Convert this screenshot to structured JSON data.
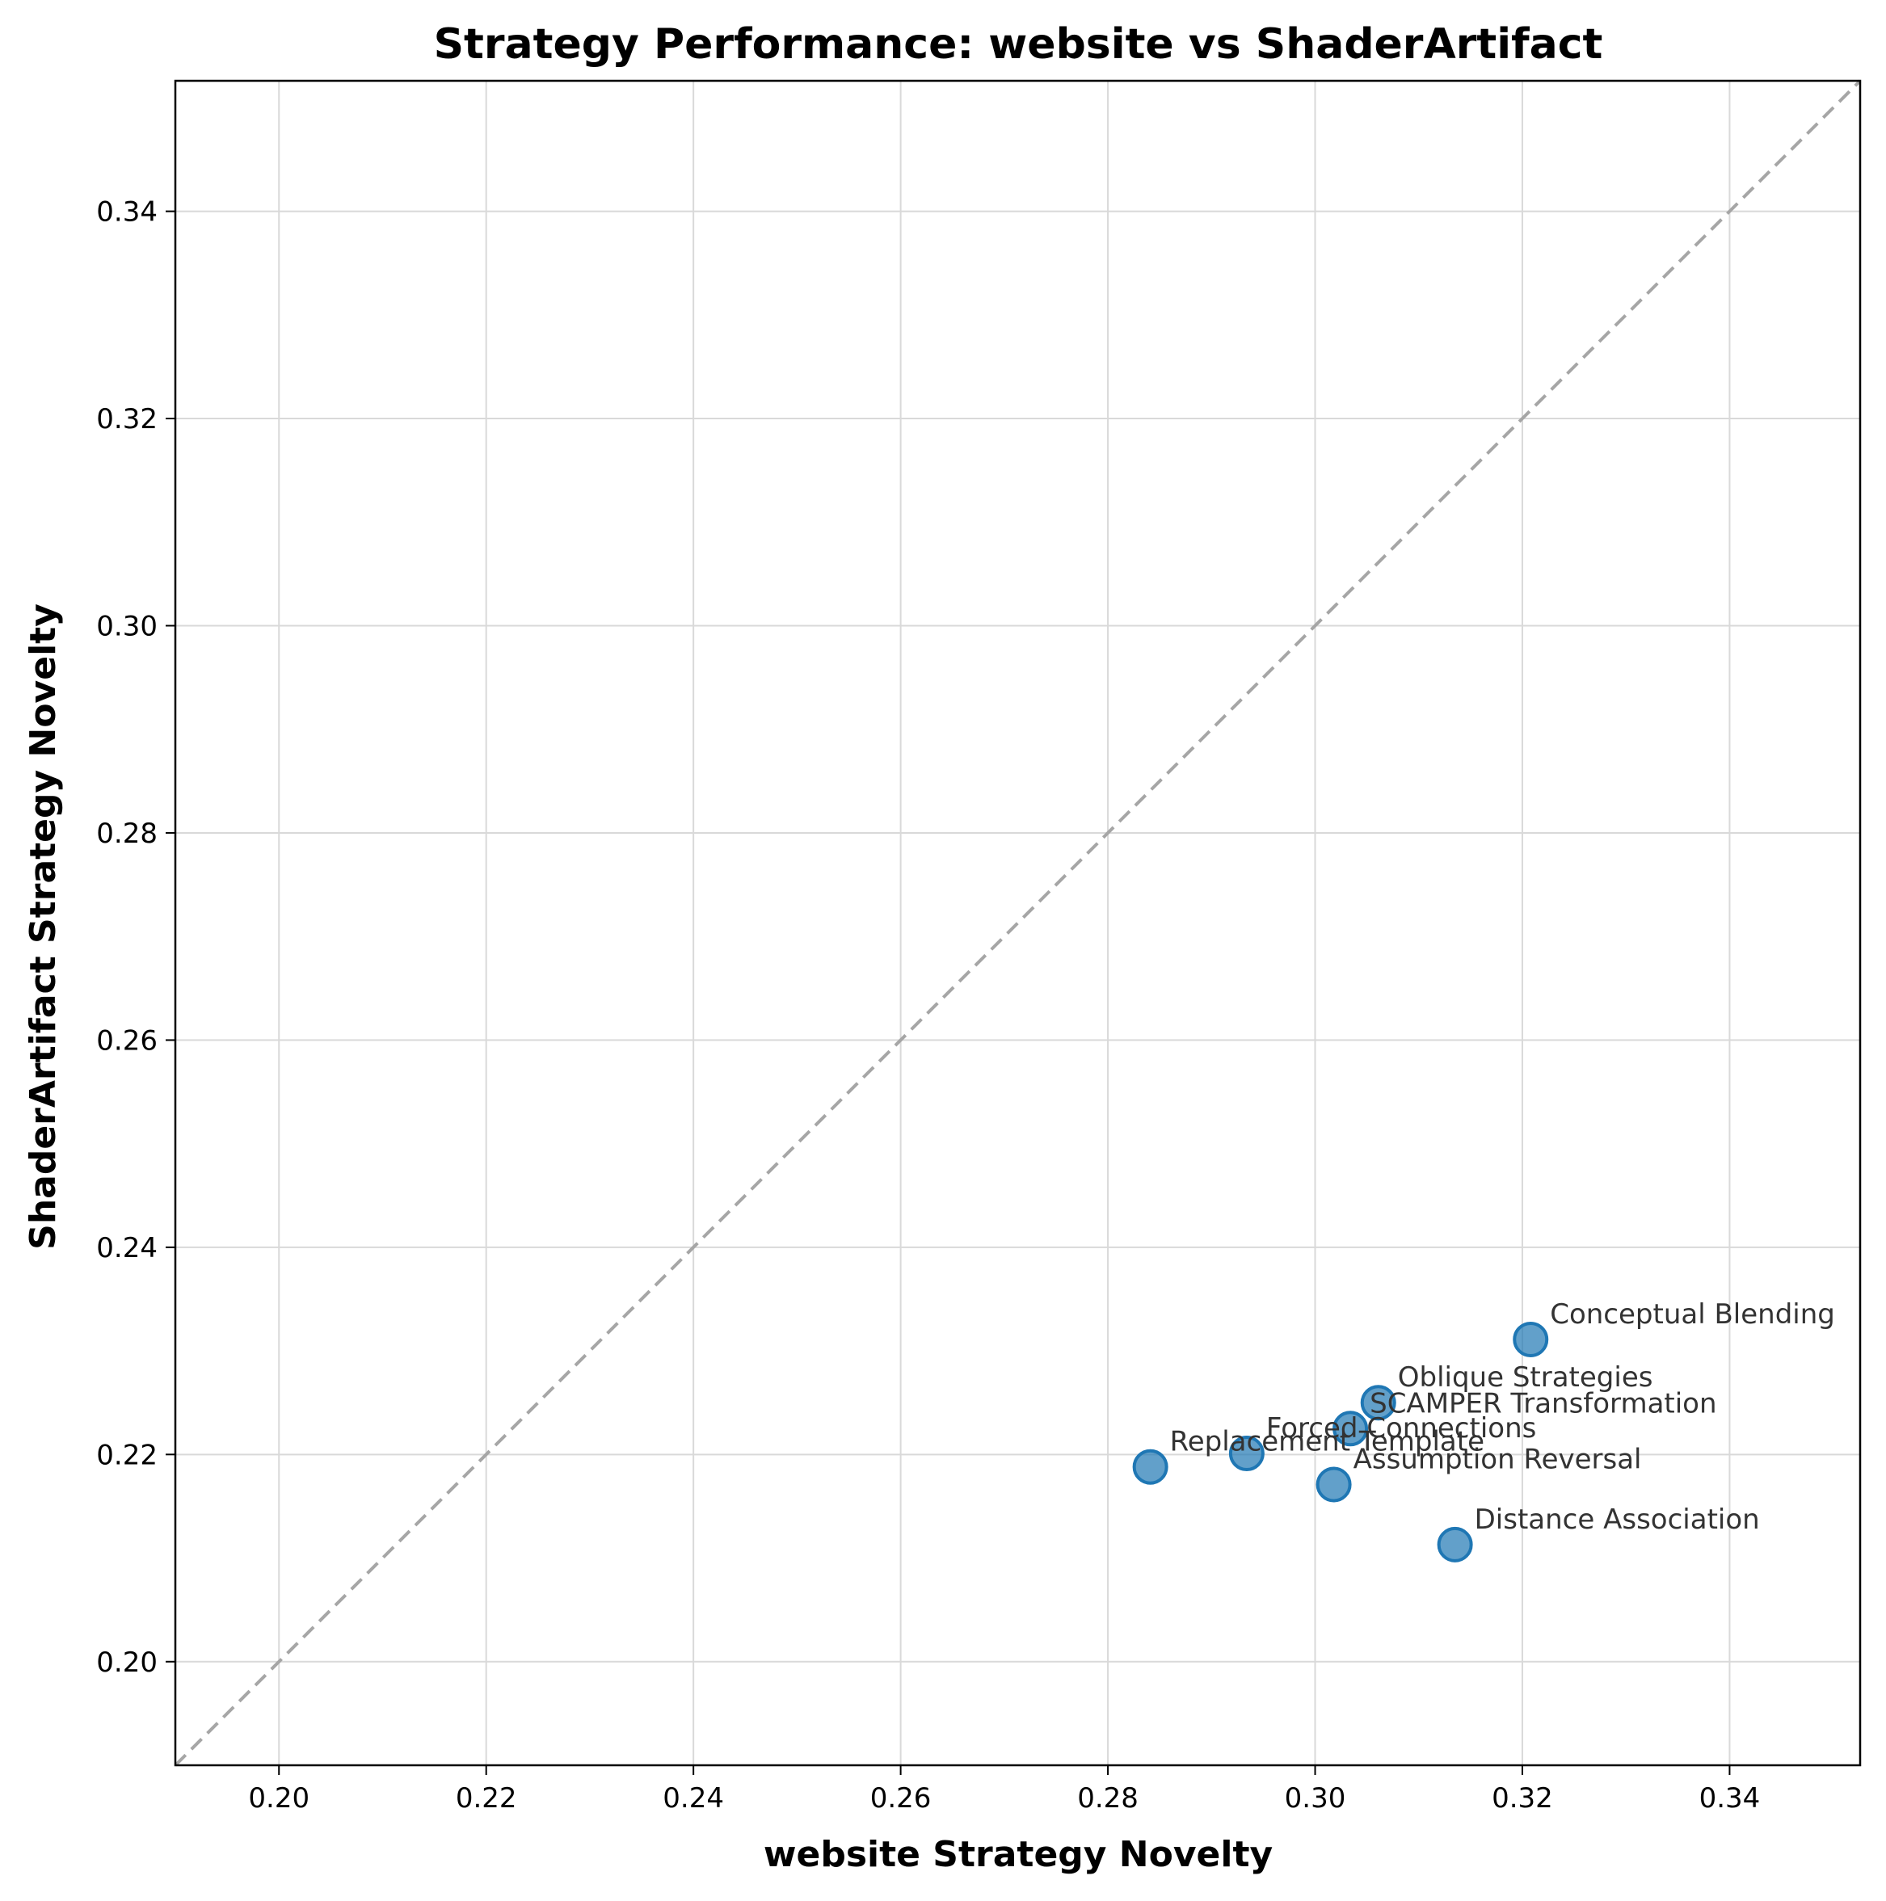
{
  "chart_data": {
    "type": "scatter",
    "title": "Strategy Performance: website vs ShaderArtifact",
    "xlabel": "website Strategy Novelty",
    "ylabel": "ShaderArtifact Strategy Novelty",
    "xlim": [
      0.19,
      0.3526
    ],
    "ylim": [
      0.19,
      0.3526
    ],
    "xticks": [
      "0.20",
      "0.22",
      "0.24",
      "0.26",
      "0.28",
      "0.30",
      "0.32",
      "0.34"
    ],
    "yticks": [
      "0.20",
      "0.22",
      "0.24",
      "0.26",
      "0.28",
      "0.30",
      "0.32",
      "0.34"
    ],
    "grid": true,
    "reference_line": "y = x (dashed)",
    "point_color": "#1f77b4",
    "points": [
      {
        "label": "Conceptual Blending",
        "x": 0.3208,
        "y": 0.2311
      },
      {
        "label": "Oblique Strategies",
        "x": 0.3061,
        "y": 0.225
      },
      {
        "label": "SCAMPER Transformation",
        "x": 0.3034,
        "y": 0.2225
      },
      {
        "label": "Forced Connections",
        "x": 0.2934,
        "y": 0.2201
      },
      {
        "label": "Replacement Template",
        "x": 0.2841,
        "y": 0.2188
      },
      {
        "label": "Assumption Reversal",
        "x": 0.3018,
        "y": 0.2171
      },
      {
        "label": "Distance Association",
        "x": 0.3135,
        "y": 0.2113
      }
    ]
  }
}
